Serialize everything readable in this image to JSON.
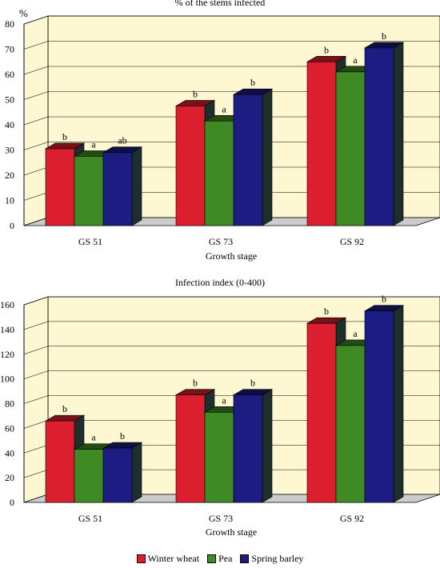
{
  "chart_data": [
    {
      "type": "bar",
      "title": "% of the stems infected",
      "ylabel": "%",
      "xlabel": "Growth stage",
      "categories": [
        "GS 51",
        "GS 73",
        "GS 92"
      ],
      "ylim": [
        0,
        80
      ],
      "yticks": [
        0,
        10,
        20,
        30,
        40,
        50,
        60,
        70,
        80
      ],
      "grid": true,
      "series": [
        {
          "name": "Winter wheat",
          "values": [
            30.5,
            47.5,
            65
          ],
          "letters": [
            "b",
            "b",
            "b"
          ]
        },
        {
          "name": "Pea",
          "values": [
            27.5,
            41.5,
            61
          ],
          "letters": [
            "a",
            "a",
            "a"
          ]
        },
        {
          "name": "Spring barley",
          "values": [
            29,
            52,
            70.5
          ],
          "letters": [
            "ab",
            "b",
            "b"
          ]
        }
      ]
    },
    {
      "type": "bar",
      "title": "Infection index (0-400)",
      "ylabel": "",
      "xlabel": "Growth stage",
      "categories": [
        "GS 51",
        "GS 73",
        "GS 92"
      ],
      "ylim": [
        0,
        160
      ],
      "yticks": [
        0,
        20,
        40,
        60,
        80,
        100,
        120,
        140,
        160
      ],
      "grid": true,
      "series": [
        {
          "name": "Winter wheat",
          "values": [
            66,
            87,
            145
          ],
          "letters": [
            "b",
            "b",
            "b"
          ]
        },
        {
          "name": "Pea",
          "values": [
            43,
            73,
            127
          ],
          "letters": [
            "a",
            "a",
            "a"
          ]
        },
        {
          "name": "Spring barley",
          "values": [
            44,
            87,
            155
          ],
          "letters": [
            "b",
            "b",
            "b"
          ]
        }
      ]
    }
  ],
  "legend": [
    {
      "label": "Winter wheat",
      "color": "#dc1f2e"
    },
    {
      "label": "Pea",
      "color": "#3f8a25"
    },
    {
      "label": "Spring barley",
      "color": "#1c1c82"
    }
  ],
  "colors": {
    "wall": "#fdf7d2",
    "floor": "#cccccc",
    "side": "#1e2e2c"
  }
}
